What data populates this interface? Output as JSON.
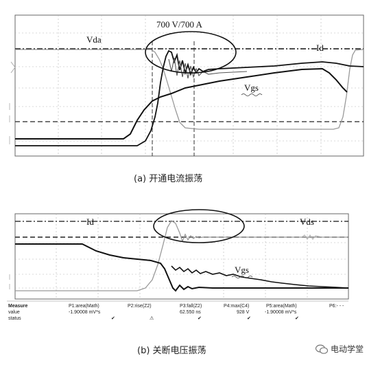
{
  "top_panel": {
    "annotation": "700 V/700 A",
    "label_vda": "Vda",
    "label_id": "Id",
    "label_vgs": "Vgs",
    "caption": "(a) 开通电流振荡"
  },
  "bottom_panel": {
    "label_id": "Id",
    "label_vds": "Vds",
    "label_vgs": "Vgs",
    "caption": "(b) 关断电压振荡",
    "measure_table": {
      "row_labels": [
        "Measure",
        "value",
        "status"
      ],
      "columns": [
        {
          "name": "P1:area(Math)",
          "value": "-1.90008 mV*s",
          "status": "✔"
        },
        {
          "name": "P2:rise(Z2)",
          "value": "",
          "status": "⚠"
        },
        {
          "name": "P3:fall(Z2)",
          "value": "62.550 ns",
          "status": "✔"
        },
        {
          "name": "P4:max(C4)",
          "value": "928 V",
          "status": "✔"
        },
        {
          "name": "P5:area(Math)",
          "value": "-1.90008 mV*s",
          "status": "✔"
        },
        {
          "name": "P6:- - -",
          "value": "",
          "status": ""
        }
      ]
    }
  },
  "watermark": {
    "text": "电动学堂",
    "icon": "wechat-icon"
  },
  "colors": {
    "trace_dark": "#111111",
    "trace_light": "#999999",
    "grid": "#b5b5b5"
  }
}
